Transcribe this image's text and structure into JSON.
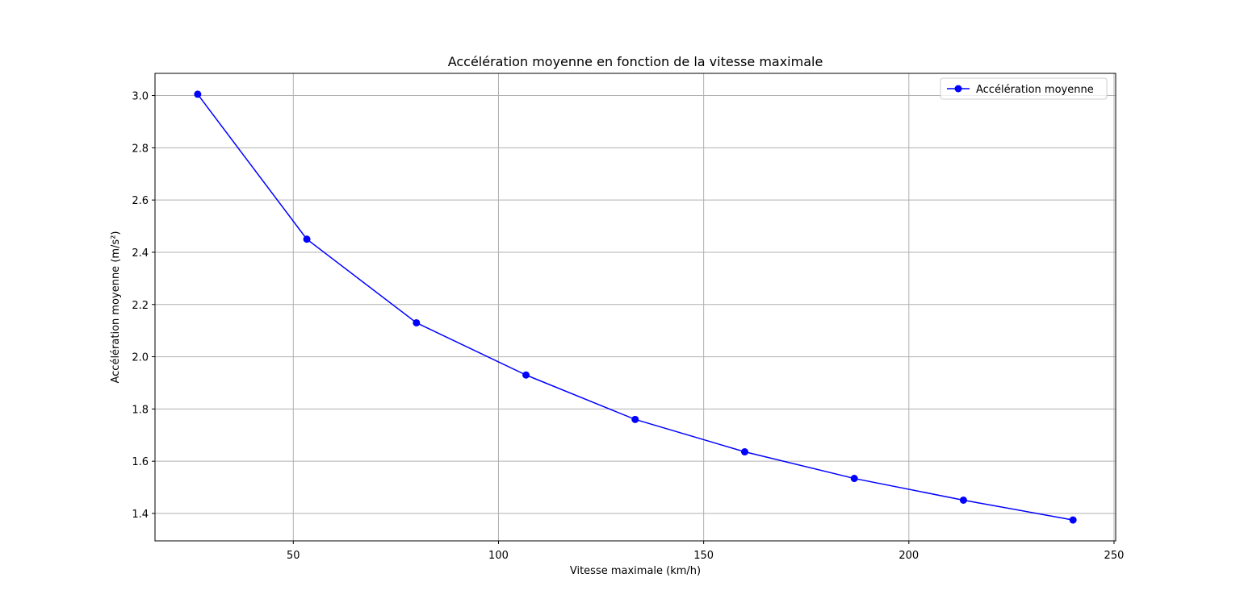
{
  "chart_data": {
    "type": "line",
    "title": "Accélération moyenne en fonction de la vitesse maximale",
    "xlabel": "Vitesse maximale (km/h)",
    "ylabel": "Accélération moyenne (m/s²)",
    "xlim": [
      16.3,
      250.4
    ],
    "ylim": [
      1.295,
      3.085
    ],
    "xticks": [
      50,
      100,
      150,
      200,
      250
    ],
    "yticks": [
      1.4,
      1.6,
      1.8,
      2.0,
      2.2,
      2.4,
      2.6,
      2.8,
      3.0
    ],
    "grid": true,
    "legend": {
      "position": "top-right"
    },
    "series": [
      {
        "name": "Accélération moyenne",
        "color": "#0000ff",
        "marker": "circle",
        "x": [
          26.7,
          53.3,
          80.0,
          106.7,
          133.3,
          160.0,
          186.7,
          213.3,
          240.0
        ],
        "y": [
          3.005,
          2.45,
          2.13,
          1.93,
          1.76,
          1.636,
          1.534,
          1.451,
          1.375
        ]
      }
    ]
  }
}
